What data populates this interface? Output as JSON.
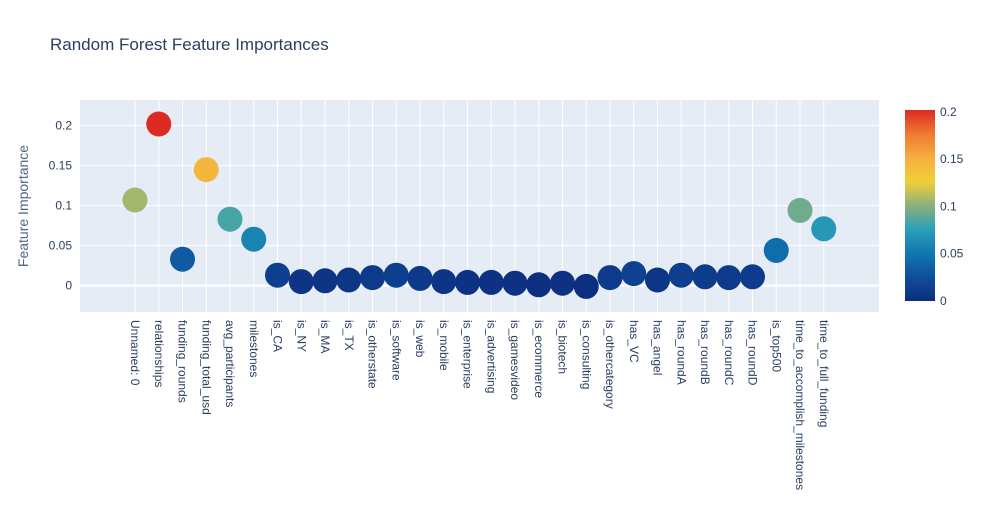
{
  "chart_data": {
    "type": "scatter",
    "title": "Random Forest Feature Importances",
    "xlabel": "",
    "ylabel": "Feature Importance",
    "categories": [
      "Unnamed: 0",
      "relationships",
      "funding_rounds",
      "funding_total_usd",
      "avg_participants",
      "milestones",
      "is_CA",
      "is_NY",
      "is_MA",
      "is_TX",
      "is_otherstate",
      "is_software",
      "is_web",
      "is_mobile",
      "is_enterprise",
      "is_advertising",
      "is_gamesvideo",
      "is_ecommerce",
      "is_biotech",
      "is_consulting",
      "is_othercategory",
      "has_VC",
      "has_angel",
      "has_roundA",
      "has_roundB",
      "has_roundC",
      "has_roundD",
      "is_top500",
      "time_to_accomplish_milestones",
      "time_to_full_funding"
    ],
    "values": [
      0.107,
      0.202,
      0.033,
      0.145,
      0.083,
      0.058,
      0.013,
      0.005,
      0.006,
      0.007,
      0.01,
      0.013,
      0.009,
      0.005,
      0.004,
      0.004,
      0.003,
      0.001,
      0.003,
      -0.001,
      0.01,
      0.015,
      0.007,
      0.013,
      0.011,
      0.01,
      0.011,
      0.044,
      0.094,
      0.071
    ],
    "ylim": [
      -0.033,
      0.232
    ],
    "yticks": [
      0,
      0.05,
      0.1,
      0.15,
      0.2
    ],
    "ytick_labels": [
      "0",
      "0.05",
      "0.1",
      "0.15",
      "0.2"
    ],
    "colorbar": {
      "range": [
        0,
        0.202
      ],
      "ticks": [
        0,
        0.05,
        0.1,
        0.15,
        0.2
      ],
      "tick_labels": [
        "0",
        "0.05",
        "0.1",
        "0.15",
        "0.2"
      ],
      "colorscale": [
        [
          0.0,
          "#0d2d80"
        ],
        [
          0.125,
          "#0e4f9b"
        ],
        [
          0.25,
          "#1177b0"
        ],
        [
          0.375,
          "#2b9fb8"
        ],
        [
          0.5,
          "#8cb07d"
        ],
        [
          0.625,
          "#f0d038"
        ],
        [
          0.75,
          "#f5ae3f"
        ],
        [
          0.875,
          "#ee7a32"
        ],
        [
          1.0,
          "#dd2a22"
        ]
      ]
    },
    "colors": {
      "plot_background": "#e5ecf6",
      "grid": "#ffffff",
      "text": "#2a3f5f"
    },
    "grid": true,
    "legend": "none"
  }
}
